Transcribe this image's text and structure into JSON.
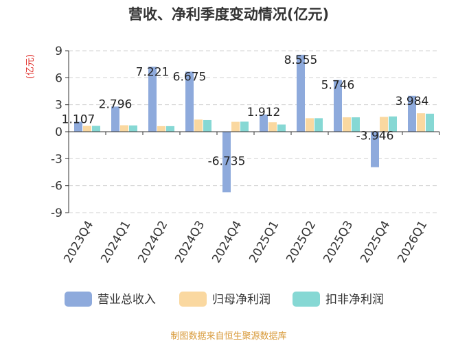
{
  "chart_data": {
    "type": "bar",
    "title": "营收、净利季度变动情况(亿元)",
    "ylabel": "(亿元)",
    "ylim": [
      -9,
      9
    ],
    "yticks": [
      9,
      6,
      3,
      0,
      -3,
      -6,
      -9
    ],
    "grid": true,
    "legend_position": "bottom",
    "categories": [
      "2023Q4",
      "2024Q1",
      "2024Q2",
      "2024Q3",
      "2024Q4",
      "2025Q1",
      "2025Q2",
      "2025Q3",
      "2025Q4",
      "2026Q1"
    ],
    "series": [
      {
        "name": "营业总收入",
        "color": "#8eaadc",
        "values": [
          1.107,
          2.796,
          7.221,
          6.675,
          -6.735,
          1.912,
          8.555,
          5.746,
          -3.946,
          3.984
        ],
        "labels": [
          "1.107",
          "2.796",
          "7.221",
          "6.675",
          "-6.735",
          "1.912",
          "8.555",
          "5.746",
          "-3.946",
          "3.984"
        ]
      },
      {
        "name": "归母净利润",
        "color": "#fad8a0",
        "values": [
          0.65,
          0.72,
          0.62,
          1.35,
          1.1,
          1.05,
          1.5,
          1.6,
          1.65,
          2.05
        ]
      },
      {
        "name": "扣非净利润",
        "color": "#86d8d4",
        "values": [
          0.65,
          0.7,
          0.62,
          1.3,
          1.12,
          0.8,
          1.5,
          1.6,
          1.7,
          2.0
        ]
      }
    ]
  },
  "source": "制图数据来自恒生聚源数据库",
  "colors": {
    "title": "#333333",
    "unit": "#e0302c",
    "source": "#d89a3a",
    "grid": "#d0d0d0",
    "axis": "#333333"
  }
}
